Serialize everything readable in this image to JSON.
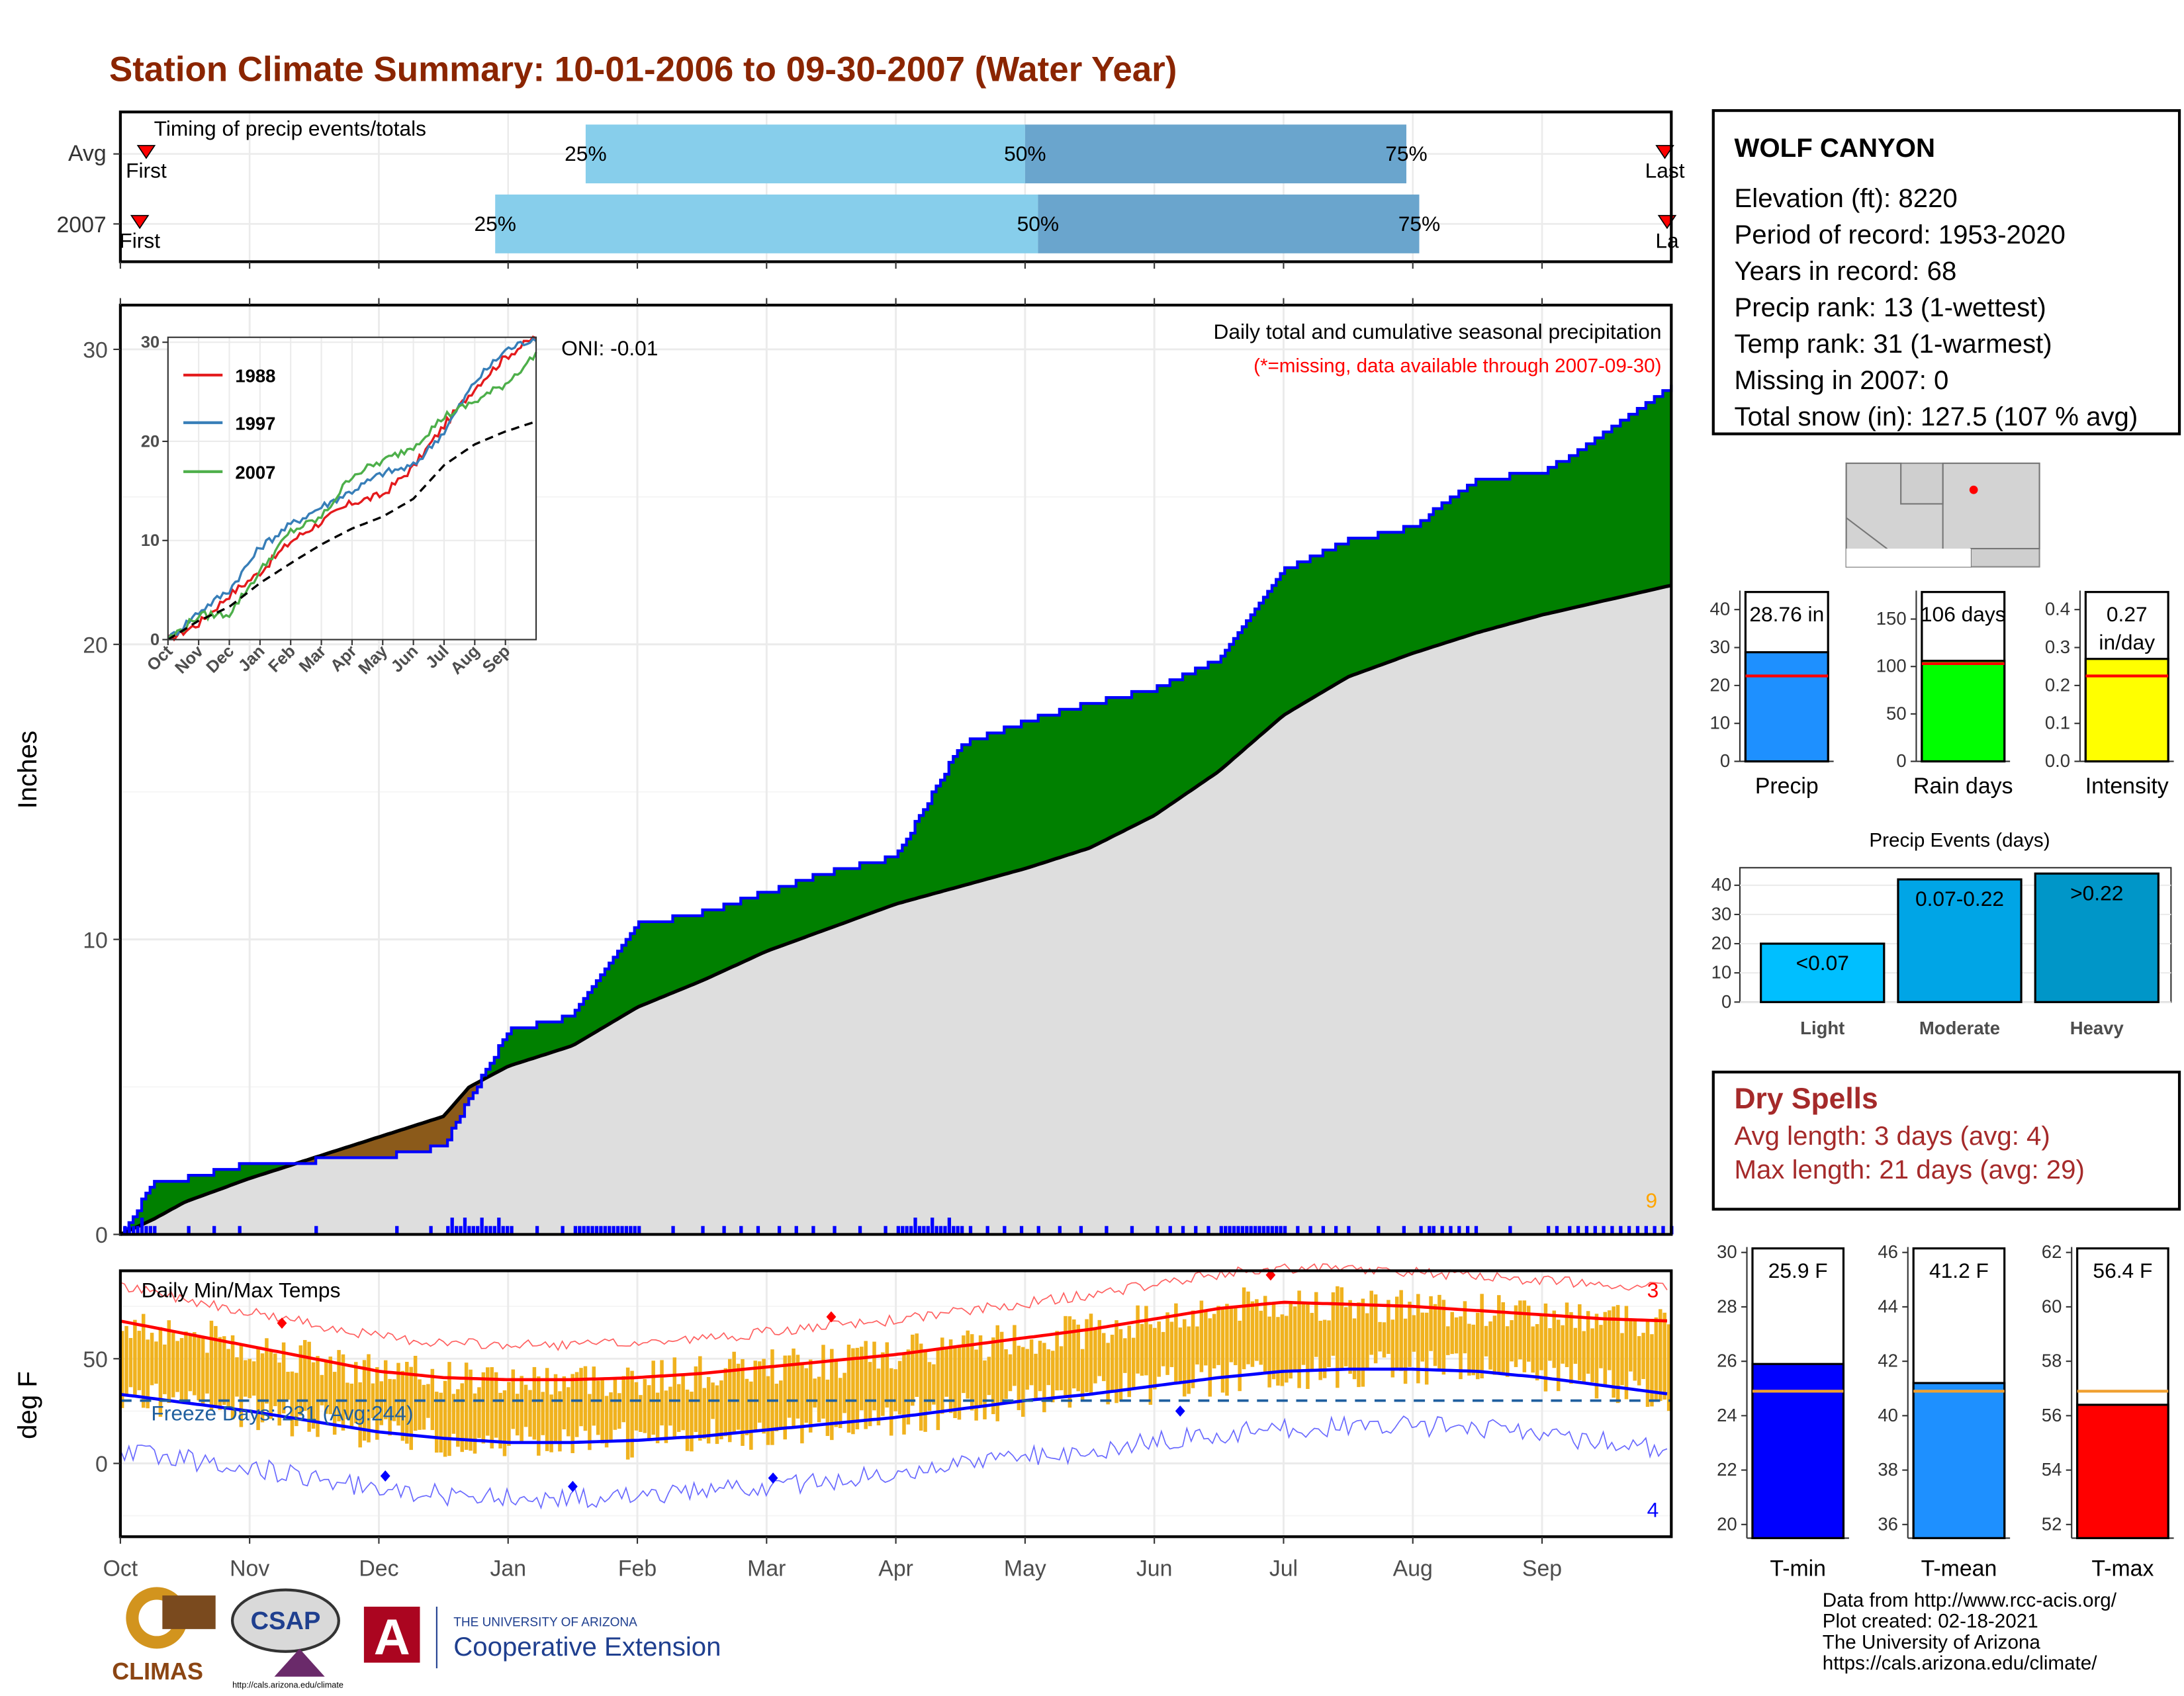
{
  "title": "Station Climate Summary: 10-01-2006 to 09-30-2007 (Water Year)",
  "station": {
    "name": "WOLF CANYON",
    "lines": [
      "Elevation (ft): 8220",
      "Period of record: 1953-2020",
      "Years in record: 68",
      "Precip rank: 13 (1-wettest)",
      "Temp rank: 31 (1-warmest)",
      "Missing in 2007: 0",
      "Total snow (in): 127.5 (107 % avg)"
    ]
  },
  "timing": {
    "label": "Timing of precip events/totals",
    "rows": [
      "Avg",
      "2007"
    ],
    "pct_labels": [
      "25%",
      "50%",
      "75%"
    ],
    "first_label": "First",
    "last_label": "Last",
    "last_label_clipped": "La",
    "colors": {
      "light": "#87ceeb",
      "dark": "#6aa5cd",
      "marker": "#ff0000"
    }
  },
  "precip_panel": {
    "ylabel": "Inches",
    "yticks": [
      "0",
      "10",
      "20",
      "30"
    ],
    "legend_title": "Daily total and cumulative seasonal precipitation",
    "legend_note": "(*=missing, data available through 2007-09-30)",
    "oni": "ONI: -0.01",
    "corner_count": "9",
    "colors": {
      "above": "#008000",
      "below": "#8b5a1a",
      "avg": "#dedede",
      "line": "#0000ff"
    }
  },
  "inset": {
    "yticks": [
      "0",
      "10",
      "20",
      "30"
    ],
    "xticks": [
      "Oct",
      "Nov",
      "Dec",
      "Jan",
      "Feb",
      "Mar",
      "Apr",
      "May",
      "Jun",
      "Jul",
      "Aug",
      "Sep"
    ],
    "legend": [
      {
        "name": "1988",
        "color": "#e41a1c"
      },
      {
        "name": "1997",
        "color": "#377eb8"
      },
      {
        "name": "2007",
        "color": "#4daf4a"
      }
    ]
  },
  "temp_panel": {
    "ylabel": "deg F",
    "yticks": [
      "0",
      "50"
    ],
    "label": "Daily Min/Max Temps",
    "freeze": "Freeze Days: 231 (Avg:244)",
    "count_high": "3",
    "count_low": "4",
    "colors": {
      "bar": "#f0b21e",
      "max": "#ff0000",
      "min": "#0000ff"
    }
  },
  "months": [
    "Oct",
    "Nov",
    "Dec",
    "Jan",
    "Feb",
    "Mar",
    "Apr",
    "May",
    "Jun",
    "Jul",
    "Aug",
    "Sep"
  ],
  "summary_bars": [
    {
      "label": "Precip",
      "value_text": "28.76 in",
      "yticks": [
        "0",
        "10",
        "20",
        "30",
        "40"
      ],
      "color": "#1e90ff"
    },
    {
      "label": "Rain days",
      "value_text": "106 days",
      "yticks": [
        "0",
        "50",
        "100",
        "150"
      ],
      "color": "#00ff00"
    },
    {
      "label": "Intensity",
      "value_text": "0.27 in/day",
      "value_line1": "0.27",
      "value_line2": "in/day",
      "yticks": [
        "0.0",
        "0.1",
        "0.2",
        "0.3",
        "0.4"
      ],
      "color": "#ffff00"
    }
  ],
  "precip_events": {
    "title": "Precip Events (days)",
    "yticks": [
      "0",
      "10",
      "20",
      "30",
      "40"
    ],
    "bars": [
      {
        "label": "Light",
        "range": "<0.07",
        "color": "#00bfff"
      },
      {
        "label": "Moderate",
        "range": "0.07-0.22",
        "color": "#00a5e6"
      },
      {
        "label": "Heavy",
        "range": ">0.22",
        "color": "#0096c8"
      }
    ]
  },
  "dry_spells": {
    "title": "Dry Spells",
    "avg": "Avg length: 3 days (avg: 4)",
    "max": "Max length: 21 days (avg: 29)"
  },
  "temp_bars": [
    {
      "label": "T-min",
      "value_text": "25.9 F",
      "yticks": [
        "20",
        "22",
        "24",
        "26",
        "28",
        "30"
      ],
      "color": "#0000ff"
    },
    {
      "label": "T-mean",
      "value_text": "41.2 F",
      "yticks": [
        "36",
        "38",
        "40",
        "42",
        "44",
        "46"
      ],
      "color": "#1e90ff"
    },
    {
      "label": "T-max",
      "value_text": "56.4 F",
      "yticks": [
        "52",
        "54",
        "56",
        "58",
        "60",
        "62"
      ],
      "color": "#ff0000"
    }
  ],
  "credits": [
    "Data from http://www.rcc-acis.org/",
    "Plot created: 02-18-2021",
    "The University of Arizona",
    "https://cals.arizona.edu/climate/"
  ],
  "logos": {
    "climas": "CLIMAS",
    "csap": "CSAP",
    "csap_url": "http://cals.arizona.edu/climate",
    "ua_small": "THE UNIVERSITY OF ARIZONA",
    "ua_big": "Cooperative Extension",
    "ua_letter": "A"
  },
  "chart_data": [
    {
      "type": "bar",
      "name": "timing",
      "categories": [
        "Avg",
        "2007"
      ],
      "series": [
        {
          "name": "25%",
          "values": [
            3.6,
            2.9
          ]
        },
        {
          "name": "50%",
          "values": [
            7.0,
            7.1
          ]
        },
        {
          "name": "75%",
          "values": [
            9.95,
            10.05
          ]
        }
      ],
      "first": [
        0.2,
        0.15
      ],
      "last": [
        11.95,
        12.1
      ]
    },
    {
      "type": "area",
      "name": "cumulative precipitation",
      "ylabel": "Inches",
      "ylim": [
        0,
        31.5
      ],
      "x_months": [
        0,
        0.25,
        0.5,
        1.0,
        1.5,
        2.0,
        2.5,
        2.7,
        3.0,
        3.5,
        4.0,
        4.5,
        5.0,
        5.5,
        6.0,
        6.5,
        7.0,
        7.5,
        8.0,
        8.5,
        9.0,
        9.5,
        10.0,
        10.5,
        11.0,
        11.5,
        12.0
      ],
      "series": [
        {
          "name": "2007",
          "values": [
            0,
            1.7,
            1.9,
            2.4,
            2.5,
            2.6,
            3.0,
            4.6,
            6.9,
            7.4,
            10.5,
            10.9,
            11.6,
            12.3,
            12.8,
            16.6,
            17.4,
            18.0,
            18.5,
            19.5,
            22.5,
            23.5,
            24.0,
            25.6,
            25.8,
            27.2,
            28.76
          ]
        },
        {
          "name": "Avg",
          "values": [
            0,
            0.5,
            1.1,
            1.9,
            2.6,
            3.3,
            4.0,
            5.0,
            5.7,
            6.4,
            7.7,
            8.6,
            9.6,
            10.4,
            11.2,
            11.8,
            12.4,
            13.1,
            14.2,
            15.7,
            17.6,
            18.9,
            19.7,
            20.4,
            21.0,
            21.5,
            22.0
          ]
        }
      ]
    },
    {
      "type": "line",
      "name": "inset cumulative comparison",
      "ylim": [
        0,
        30.5
      ],
      "x_months": [
        0,
        1,
        2,
        3,
        4,
        5,
        6,
        7,
        8,
        9,
        10,
        11,
        12
      ],
      "series": [
        {
          "name": "1988",
          "values": [
            0,
            1.6,
            4.5,
            6.8,
            9.9,
            11.9,
            13.8,
            14.6,
            17.4,
            21.6,
            25.4,
            28.5,
            30.6
          ]
        },
        {
          "name": "1997",
          "values": [
            0,
            2.8,
            5.0,
            9.3,
            11.6,
            13.4,
            15.0,
            16.8,
            17.5,
            21.0,
            26.0,
            29.2,
            30.5
          ]
        },
        {
          "name": "2007",
          "values": [
            0,
            2.4,
            2.6,
            6.9,
            10.9,
            12.3,
            16.6,
            18.0,
            19.5,
            22.5,
            24.0,
            25.8,
            28.76
          ]
        },
        {
          "name": "Avg",
          "values": [
            0,
            1.9,
            3.3,
            5.7,
            7.7,
            9.6,
            11.2,
            12.4,
            14.2,
            17.6,
            19.7,
            21.0,
            22.0
          ]
        }
      ]
    },
    {
      "type": "line",
      "name": "daily min/max temps",
      "ylabel": "deg F",
      "ylim": [
        -35,
        92
      ],
      "x_months": [
        0,
        0.5,
        1,
        1.5,
        2,
        2.5,
        3,
        3.5,
        4,
        4.5,
        5,
        5.5,
        6,
        6.5,
        7,
        7.5,
        8,
        8.5,
        9,
        9.5,
        10,
        10.5,
        11,
        11.5,
        12
      ],
      "series": [
        {
          "name": "avg max",
          "values": [
            68,
            62,
            56,
            50,
            44,
            41,
            40,
            40,
            41,
            43,
            46,
            49,
            52,
            56,
            60,
            64,
            69,
            74,
            77,
            76,
            75,
            73,
            71,
            69,
            68
          ]
        },
        {
          "name": "avg min",
          "values": [
            33,
            29,
            25,
            20,
            15,
            12,
            10,
            10,
            11,
            13,
            16,
            19,
            22,
            26,
            30,
            33,
            37,
            41,
            44,
            45,
            45,
            44,
            41,
            37,
            33
          ]
        }
      ],
      "freeze_line": 30
    },
    {
      "type": "bar",
      "name": "annual precip summary",
      "categories": [
        "Precip",
        "Rain days",
        "Intensity"
      ],
      "values": [
        28.76,
        106,
        0.27
      ],
      "averages": [
        22.5,
        103,
        0.225
      ],
      "ylims": [
        [
          0,
          45
        ],
        [
          0,
          180
        ],
        [
          0,
          0.45
        ]
      ]
    },
    {
      "type": "bar",
      "name": "Precip Events (days)",
      "categories": [
        "Light",
        "Moderate",
        "Heavy"
      ],
      "values": [
        20,
        42,
        44
      ],
      "ylim": [
        0,
        46
      ]
    },
    {
      "type": "bar",
      "name": "annual temperature summary",
      "categories": [
        "T-min",
        "T-mean",
        "T-max"
      ],
      "values": [
        25.9,
        41.2,
        56.4
      ],
      "averages": [
        24.9,
        40.9,
        56.9
      ],
      "ylims": [
        [
          19.5,
          30.2
        ],
        [
          35.5,
          46.2
        ],
        [
          51.5,
          62.2
        ]
      ]
    }
  ]
}
